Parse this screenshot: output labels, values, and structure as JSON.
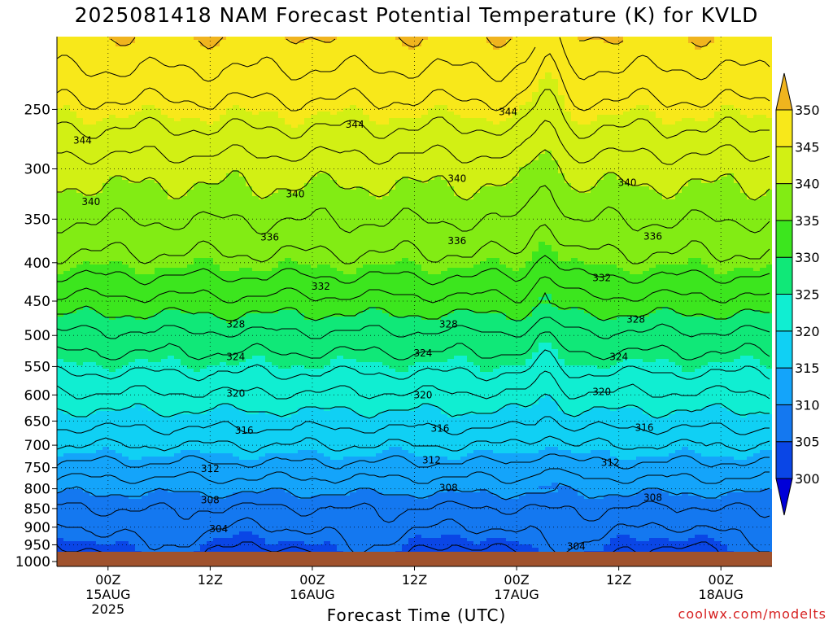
{
  "title": "2025081418 NAM Forecast Potential Temperature (K) for KVLD",
  "watermark": "coolwx.com/modelts",
  "chart_data": {
    "type": "heatmap",
    "title": "2025081418 NAM Forecast Potential Temperature (K) for KVLD",
    "xlabel": "Forecast Time (UTC)",
    "ylabel": "",
    "y_scale": "log-pressure",
    "y_ticks": [
      250,
      300,
      350,
      400,
      450,
      500,
      550,
      600,
      650,
      700,
      750,
      800,
      850,
      900,
      950,
      1000
    ],
    "y_range_hPa": [
      200,
      1015
    ],
    "x_ticks": [
      {
        "label": "00Z",
        "sub": [
          "15AUG",
          "2025"
        ],
        "hour": 6
      },
      {
        "label": "12Z",
        "sub": [],
        "hour": 18
      },
      {
        "label": "00Z",
        "sub": [
          "16AUG"
        ],
        "hour": 30
      },
      {
        "label": "12Z",
        "sub": [],
        "hour": 42
      },
      {
        "label": "00Z",
        "sub": [
          "17AUG"
        ],
        "hour": 54
      },
      {
        "label": "12Z",
        "sub": [],
        "hour": 66
      },
      {
        "label": "00Z",
        "sub": [
          "18AUG"
        ],
        "hour": 78
      }
    ],
    "x_range_hours": [
      0,
      84
    ],
    "grid": true,
    "colorbar": {
      "levels": [
        300,
        305,
        310,
        315,
        320,
        325,
        330,
        335,
        340,
        345,
        350
      ],
      "colors": [
        "#0000d8",
        "#0a46e6",
        "#1478f0",
        "#14a4fa",
        "#10d0f4",
        "#10eed2",
        "#10e878",
        "#3ce61e",
        "#82ec14",
        "#d2f014",
        "#f8e81a",
        "#f0b41e"
      ],
      "extend": "both",
      "placement": "right"
    },
    "contour_labels": [
      {
        "value": 344,
        "x_hour": 3,
        "p": 275
      },
      {
        "value": 344,
        "x_hour": 35,
        "p": 262
      },
      {
        "value": 344,
        "x_hour": 53,
        "p": 252
      },
      {
        "value": 340,
        "x_hour": 4,
        "p": 332
      },
      {
        "value": 340,
        "x_hour": 28,
        "p": 324
      },
      {
        "value": 340,
        "x_hour": 47,
        "p": 309
      },
      {
        "value": 340,
        "x_hour": 67,
        "p": 313
      },
      {
        "value": 336,
        "x_hour": 25,
        "p": 370
      },
      {
        "value": 336,
        "x_hour": 47,
        "p": 374
      },
      {
        "value": 336,
        "x_hour": 70,
        "p": 369
      },
      {
        "value": 332,
        "x_hour": 31,
        "p": 430
      },
      {
        "value": 332,
        "x_hour": 64,
        "p": 419
      },
      {
        "value": 328,
        "x_hour": 21,
        "p": 483
      },
      {
        "value": 328,
        "x_hour": 46,
        "p": 483
      },
      {
        "value": 328,
        "x_hour": 68,
        "p": 476
      },
      {
        "value": 324,
        "x_hour": 21,
        "p": 534
      },
      {
        "value": 324,
        "x_hour": 43,
        "p": 528
      },
      {
        "value": 324,
        "x_hour": 66,
        "p": 534
      },
      {
        "value": 320,
        "x_hour": 21,
        "p": 597
      },
      {
        "value": 320,
        "x_hour": 43,
        "p": 600
      },
      {
        "value": 320,
        "x_hour": 64,
        "p": 594
      },
      {
        "value": 316,
        "x_hour": 22,
        "p": 669
      },
      {
        "value": 316,
        "x_hour": 45,
        "p": 665
      },
      {
        "value": 316,
        "x_hour": 69,
        "p": 663
      },
      {
        "value": 312,
        "x_hour": 18,
        "p": 752
      },
      {
        "value": 312,
        "x_hour": 44,
        "p": 733
      },
      {
        "value": 312,
        "x_hour": 65,
        "p": 738
      },
      {
        "value": 308,
        "x_hour": 18,
        "p": 828
      },
      {
        "value": 308,
        "x_hour": 46,
        "p": 798
      },
      {
        "value": 308,
        "x_hour": 70,
        "p": 822
      },
      {
        "value": 304,
        "x_hour": 19,
        "p": 905
      },
      {
        "value": 304,
        "x_hour": 61,
        "p": 955
      }
    ]
  }
}
